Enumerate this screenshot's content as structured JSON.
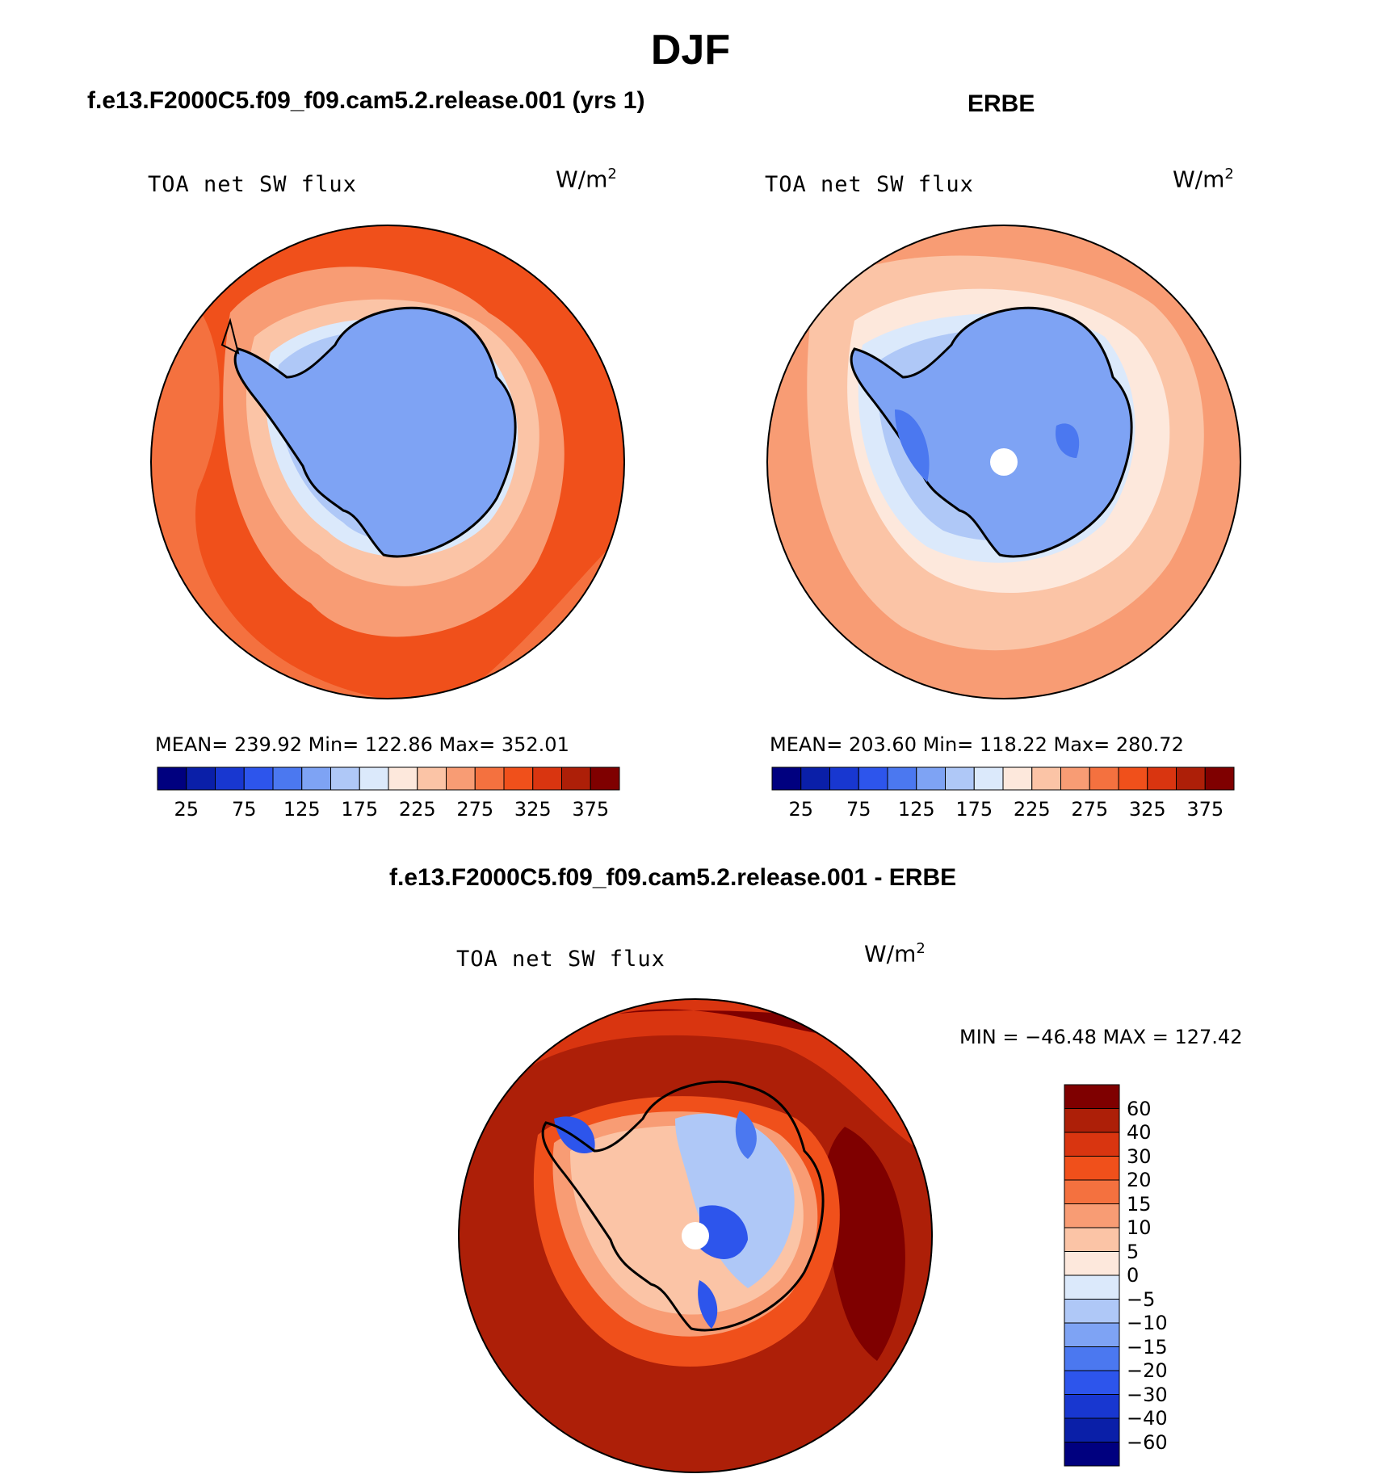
{
  "figure": {
    "title": "DJF",
    "colors": {
      "sequential": [
        "#00007f",
        "#0a1fa8",
        "#1837d0",
        "#2d55ec",
        "#4b78f0",
        "#7ea3f4",
        "#afc8f7",
        "#dbe9fb",
        "#fde8dc",
        "#fbc4a6",
        "#f89c74",
        "#f4713f",
        "#f0501b",
        "#d93510",
        "#ad1f08",
        "#7f0000"
      ],
      "diverging": [
        "#00007f",
        "#0a1fa8",
        "#1837d0",
        "#2d55ec",
        "#4b78f0",
        "#7ea3f4",
        "#afc8f7",
        "#dbe9fb",
        "#fde8dc",
        "#fbc4a6",
        "#f89c74",
        "#f4713f",
        "#f0501b",
        "#d93510",
        "#ad1f08",
        "#7f0000"
      ]
    }
  },
  "panels": {
    "model": {
      "title": "f.e13.F2000C5.f09_f09.cam5.2.release.001 (yrs 1)",
      "variable": "TOA net SW flux",
      "unit": "W/m",
      "unit_exp": "2",
      "stats": "MEAN= 239.92   Min= 122.86   Max= 352.01",
      "ticks": [
        "25",
        "75",
        "125",
        "175",
        "225",
        "275",
        "325",
        "375"
      ]
    },
    "obs": {
      "title": "ERBE",
      "variable": "TOA net SW flux",
      "unit": "W/m",
      "unit_exp": "2",
      "stats": "MEAN= 203.60   Min= 118.22   Max= 280.72",
      "ticks": [
        "25",
        "75",
        "125",
        "175",
        "225",
        "275",
        "325",
        "375"
      ]
    },
    "diff": {
      "title": "f.e13.F2000C5.f09_f09.cam5.2.release.001 - ERBE",
      "variable": "TOA net SW flux",
      "unit": "W/m",
      "unit_exp": "2",
      "stats": "MIN = −46.48 MAX = 127.42",
      "ticks": [
        "60",
        "40",
        "30",
        "20",
        "15",
        "10",
        "5",
        "0",
        "−5",
        "−10",
        "−15",
        "−20",
        "−30",
        "−40",
        "−60"
      ]
    }
  }
}
